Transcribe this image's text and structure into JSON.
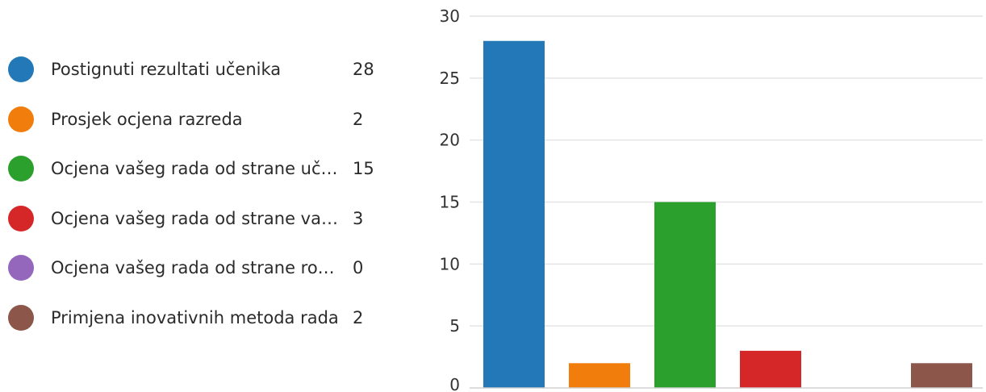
{
  "legend": {
    "items": [
      {
        "label": "Postignuti rezultati učenika",
        "value": "28",
        "color": "#2379b8"
      },
      {
        "label": "Prosjek ocjena razreda",
        "value": "2",
        "color": "#f17d0c"
      },
      {
        "label": "Ocjena vašeg rada od strane uč…",
        "value": "15",
        "color": "#2ca02c"
      },
      {
        "label": "Ocjena vašeg rada od strane vaš…",
        "value": "3",
        "color": "#d62728"
      },
      {
        "label": "Ocjena vašeg rada od strane ro…",
        "value": "0",
        "color": "#9467bd"
      },
      {
        "label": "Primjena inovativnih metoda rada",
        "value": "2",
        "color": "#8c564b"
      }
    ]
  },
  "chart_data": {
    "type": "bar",
    "categories": [
      "Postignuti rezultati učenika",
      "Prosjek ocjena razreda",
      "Ocjena vašeg rada od strane uč…",
      "Ocjena vašeg rada od strane vaš…",
      "Ocjena vašeg rada od strane ro…",
      "Primjena inovativnih metoda rada"
    ],
    "values": [
      28,
      2,
      15,
      3,
      0,
      2
    ],
    "colors": [
      "#2379b8",
      "#f17d0c",
      "#2ca02c",
      "#d62728",
      "#9467bd",
      "#8c564b"
    ],
    "ylim": [
      0,
      30
    ],
    "yticks": [
      0,
      5,
      10,
      15,
      20,
      25,
      30
    ],
    "grid": true,
    "legend": "left"
  }
}
